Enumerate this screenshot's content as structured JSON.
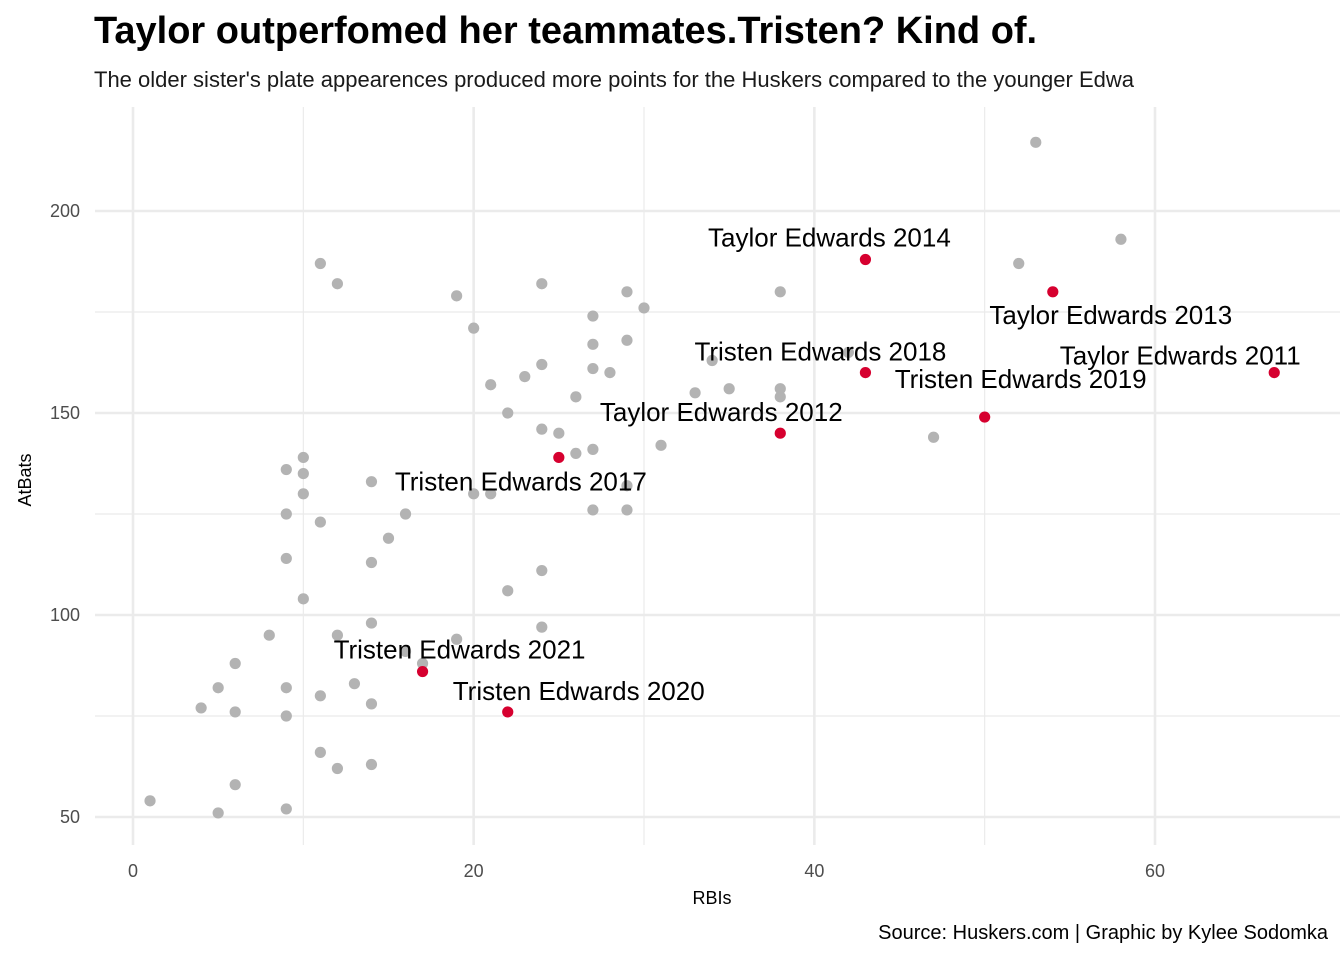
{
  "title": "Taylor outperfomed her teammates.Tristen? Kind of.",
  "subtitle": "The older sister's plate appearences produced more points for the Huskers compared to the younger Edwa",
  "caption": "Source: Huskers.com | Graphic by Kylee Sodomka",
  "colors": {
    "highlight": "#d6002f",
    "other": "#b3b3b3",
    "grid": "#ebebeb",
    "text": "#4d4d4d"
  },
  "chart_data": {
    "type": "scatter",
    "xlabel": "RBIs",
    "ylabel": "AtBats",
    "xlim": [
      -2,
      71
    ],
    "ylim": [
      44,
      224
    ],
    "xticks": [
      0,
      20,
      40,
      60
    ],
    "yticks": [
      50,
      100,
      150,
      200
    ],
    "grid": true,
    "series": [
      {
        "points": [
          {
            "x": 1,
            "y": 54
          },
          {
            "x": 5,
            "y": 51
          },
          {
            "x": 6,
            "y": 58
          },
          {
            "x": 9,
            "y": 52
          },
          {
            "x": 11,
            "y": 66
          },
          {
            "x": 12,
            "y": 62
          },
          {
            "x": 14,
            "y": 63
          },
          {
            "x": 4,
            "y": 77
          },
          {
            "x": 5,
            "y": 82
          },
          {
            "x": 6,
            "y": 76
          },
          {
            "x": 6,
            "y": 88
          },
          {
            "x": 8,
            "y": 95
          },
          {
            "x": 9,
            "y": 82
          },
          {
            "x": 9,
            "y": 75
          },
          {
            "x": 11,
            "y": 80
          },
          {
            "x": 12,
            "y": 95
          },
          {
            "x": 13,
            "y": 83
          },
          {
            "x": 14,
            "y": 78
          },
          {
            "x": 14,
            "y": 98
          },
          {
            "x": 16,
            "y": 91
          },
          {
            "x": 17,
            "y": 88
          },
          {
            "x": 19,
            "y": 94
          },
          {
            "x": 10,
            "y": 104
          },
          {
            "x": 9,
            "y": 114
          },
          {
            "x": 14,
            "y": 113
          },
          {
            "x": 15,
            "y": 119
          },
          {
            "x": 9,
            "y": 125
          },
          {
            "x": 11,
            "y": 123
          },
          {
            "x": 16,
            "y": 125
          },
          {
            "x": 9,
            "y": 136
          },
          {
            "x": 10,
            "y": 139
          },
          {
            "x": 10,
            "y": 135
          },
          {
            "x": 10,
            "y": 130
          },
          {
            "x": 14,
            "y": 133
          },
          {
            "x": 20,
            "y": 130
          },
          {
            "x": 21,
            "y": 130
          },
          {
            "x": 22,
            "y": 106
          },
          {
            "x": 24,
            "y": 111
          },
          {
            "x": 24,
            "y": 97
          },
          {
            "x": 11,
            "y": 187
          },
          {
            "x": 12,
            "y": 182
          },
          {
            "x": 19,
            "y": 179
          },
          {
            "x": 20,
            "y": 171
          },
          {
            "x": 21,
            "y": 157
          },
          {
            "x": 22,
            "y": 150
          },
          {
            "x": 23,
            "y": 159
          },
          {
            "x": 24,
            "y": 162
          },
          {
            "x": 24,
            "y": 146
          },
          {
            "x": 24,
            "y": 182
          },
          {
            "x": 25,
            "y": 145
          },
          {
            "x": 26,
            "y": 154
          },
          {
            "x": 26,
            "y": 140
          },
          {
            "x": 27,
            "y": 174
          },
          {
            "x": 27,
            "y": 167
          },
          {
            "x": 27,
            "y": 161
          },
          {
            "x": 27,
            "y": 141
          },
          {
            "x": 27,
            "y": 126
          },
          {
            "x": 28,
            "y": 160
          },
          {
            "x": 29,
            "y": 180
          },
          {
            "x": 29,
            "y": 168
          },
          {
            "x": 29,
            "y": 132
          },
          {
            "x": 29,
            "y": 126
          },
          {
            "x": 30,
            "y": 176
          },
          {
            "x": 31,
            "y": 142
          },
          {
            "x": 33,
            "y": 155
          },
          {
            "x": 34,
            "y": 163
          },
          {
            "x": 35,
            "y": 156
          },
          {
            "x": 38,
            "y": 180
          },
          {
            "x": 38,
            "y": 156
          },
          {
            "x": 38,
            "y": 154
          },
          {
            "x": 42,
            "y": 165
          },
          {
            "x": 47,
            "y": 144
          },
          {
            "x": 52,
            "y": 187
          },
          {
            "x": 53,
            "y": 217
          },
          {
            "x": 58,
            "y": 193
          }
        ]
      },
      {
        "points": [
          {
            "x": 43,
            "y": 188,
            "label": "Taylor Edwards 2014"
          },
          {
            "x": 54,
            "y": 180,
            "label": "Taylor Edwards 2013"
          },
          {
            "x": 67,
            "y": 160,
            "label": "Taylor Edwards 2011"
          },
          {
            "x": 43,
            "y": 160,
            "label": "Tristen Edwards 2018"
          },
          {
            "x": 50,
            "y": 149,
            "label": "Tristen Edwards 2019"
          },
          {
            "x": 38,
            "y": 145,
            "label": "Taylor Edwards 2012"
          },
          {
            "x": 25,
            "y": 139,
            "label": "Tristen Edwards 2017"
          },
          {
            "x": 17,
            "y": 86,
            "label": "Tristen Edwards 2021"
          },
          {
            "x": 22,
            "y": 76,
            "label": "Tristen Edwards 2020"
          }
        ]
      }
    ]
  }
}
